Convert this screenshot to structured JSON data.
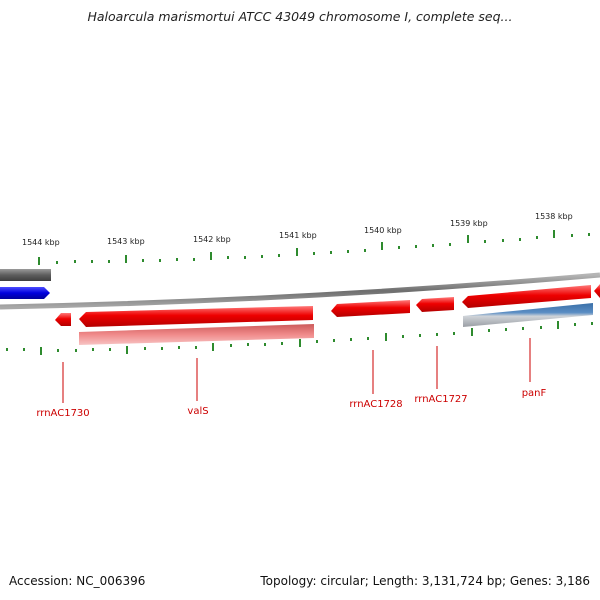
{
  "title": "Haloarcula marismortui ATCC 43049 chromosome I, complete seq...",
  "footer": {
    "accession": "Accession: NC_006396",
    "summary": "Topology: circular; Length: 3,131,724 bp; Genes: 3,186"
  },
  "colors": {
    "backbone": "#8a8a8a",
    "tick": "#2e8b2e",
    "gene_forward": "#ee0000",
    "gene_pale": "#f08a8a",
    "cds_blue": "#0000dd",
    "cds_steel": "#4a7fb5",
    "gray_feature": "#6a6a6a",
    "label": "#cc0000",
    "scale_text": "#222222"
  },
  "scale_labels": [
    "1544 kbp",
    "1543 kbp",
    "1542 kbp",
    "1541 kbp",
    "1540 kbp",
    "1539 kbp",
    "1538 kbp"
  ],
  "gene_labels": [
    "rrnAC1730",
    "valS",
    "rrnAC1728",
    "rrnAC1727",
    "panF"
  ]
}
